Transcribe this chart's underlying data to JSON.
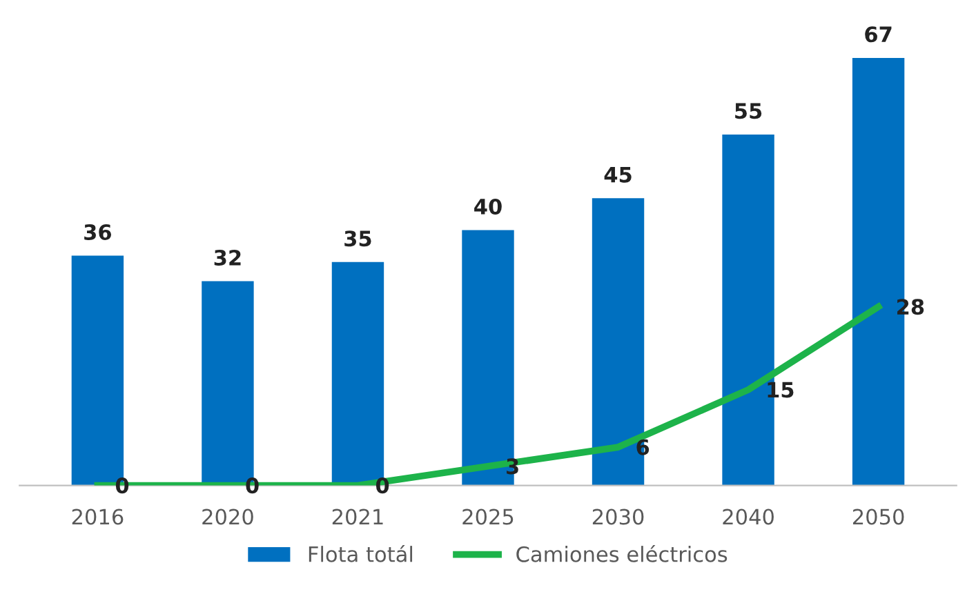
{
  "chart_data": {
    "type": "bar",
    "categories": [
      "2016",
      "2020",
      "2021",
      "2025",
      "2030",
      "2040",
      "2050"
    ],
    "series": [
      {
        "name": "Flota totál",
        "color": "#0070c0",
        "values": [
          36,
          32,
          35,
          40,
          45,
          55,
          67
        ]
      },
      {
        "name": "Camiones eléctricos",
        "type": "line",
        "color": "#1db34a",
        "values": [
          0,
          0,
          0,
          3,
          6,
          15,
          28
        ]
      }
    ],
    "tick_labels": "x",
    "data_labels": true,
    "legend": "bottom",
    "grid": false,
    "marker": "none",
    "line_style": "solid"
  }
}
